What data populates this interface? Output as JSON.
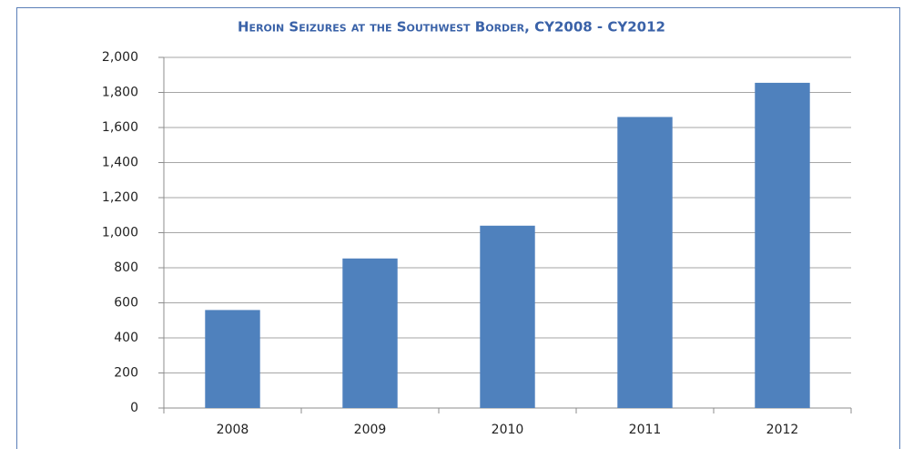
{
  "chart_data": {
    "type": "bar",
    "title": "Heroin Seizures at the Southwest Border, CY2008 - CY2012",
    "categories": [
      "2008",
      "2009",
      "2010",
      "2011",
      "2012"
    ],
    "values": [
      559,
      853,
      1040,
      1660,
      1855
    ],
    "color": "#4f81bd",
    "ylim": [
      0,
      2000
    ],
    "yticks": [
      0,
      200,
      400,
      600,
      800,
      {
        "value": 1000,
        "label": "1,000"
      },
      {
        "value": 1200,
        "label": "1,200"
      },
      {
        "value": 1400,
        "label": "1,400"
      },
      {
        "value": 1600,
        "label": "1,600"
      },
      {
        "value": 1800,
        "label": "1,800"
      },
      {
        "value": 2000,
        "label": "2,000"
      }
    ],
    "grid": true
  }
}
